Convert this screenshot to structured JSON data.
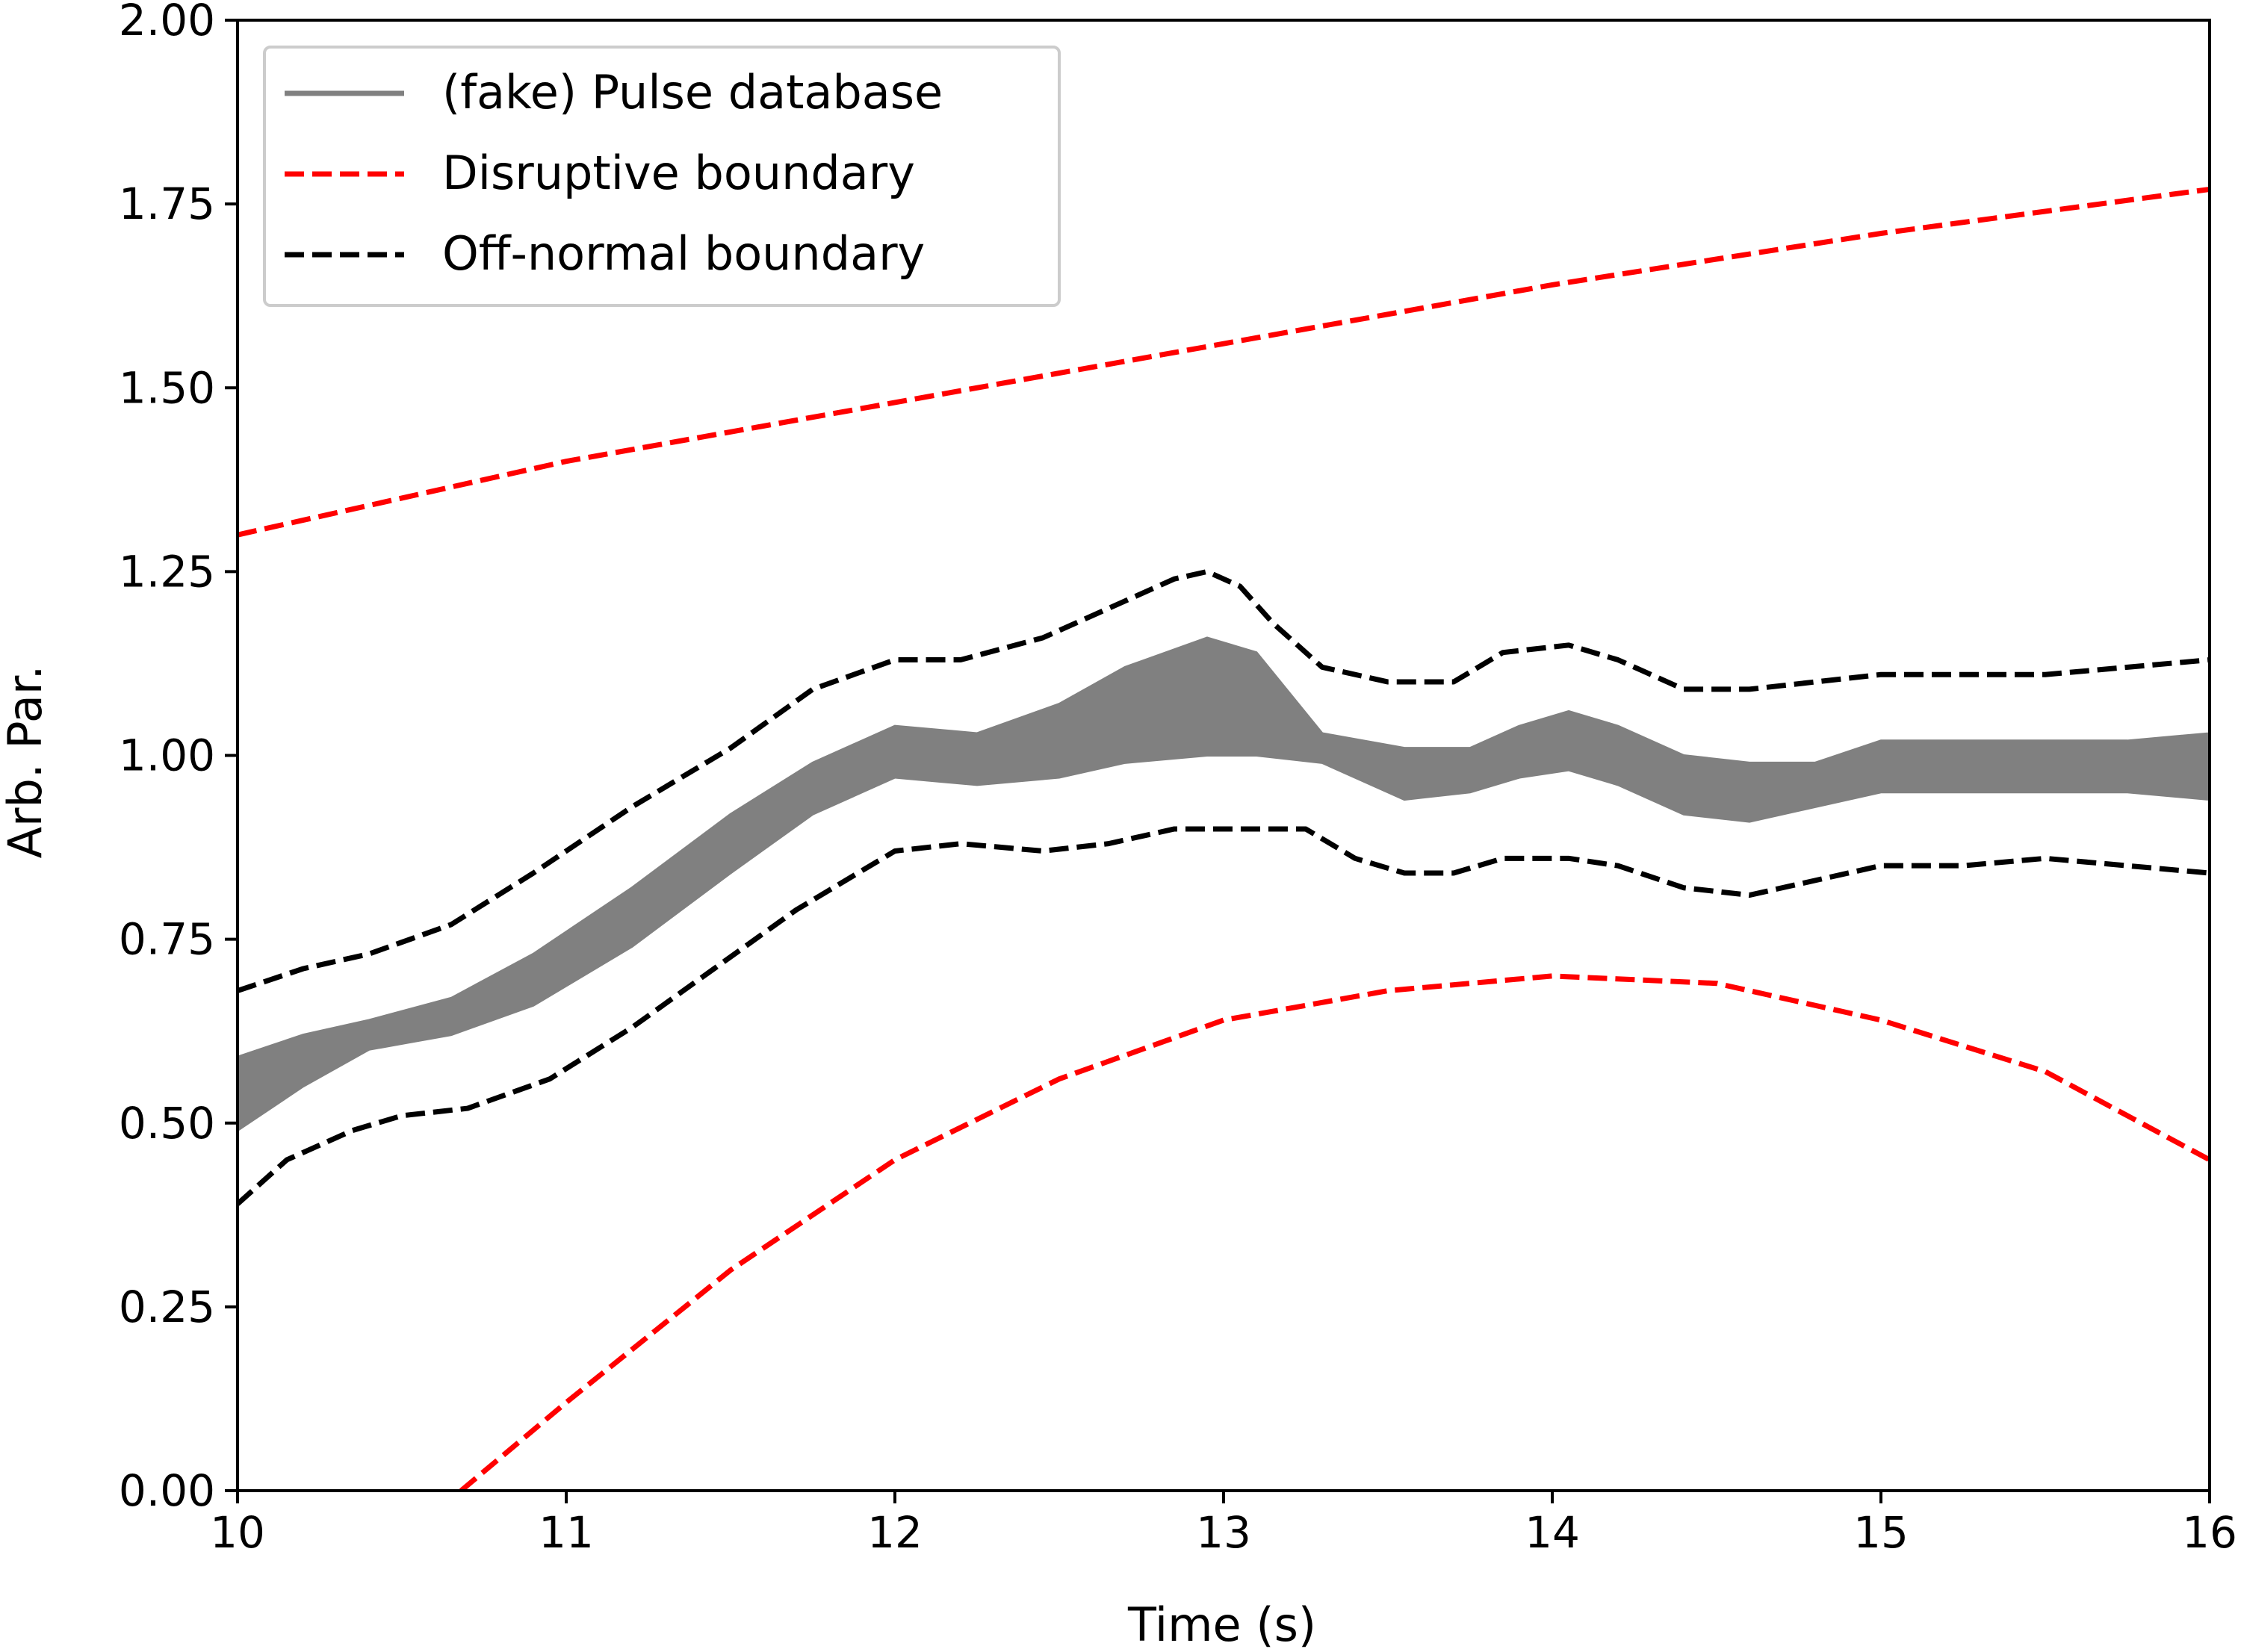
{
  "chart_data": {
    "type": "line",
    "title": "",
    "xlabel": "Time (s)",
    "ylabel": "Arb. Par.",
    "xlim": [
      10,
      16
    ],
    "ylim": [
      0,
      2
    ],
    "grid": false,
    "legend_position": "top-left",
    "x_ticks": [
      "10",
      "11",
      "12",
      "13",
      "14",
      "15",
      "16"
    ],
    "y_ticks": [
      "0.00",
      "0.25",
      "0.50",
      "0.75",
      "1.00",
      "1.25",
      "1.50",
      "1.75",
      "2.00"
    ],
    "legend": [
      {
        "label": "(fake) Pulse database",
        "color": "#808080",
        "style": "solid"
      },
      {
        "label": "Disruptive boundary",
        "color": "#ff0000",
        "style": "dashed"
      },
      {
        "label": "Off-normal boundary",
        "color": "#000000",
        "style": "dashed"
      }
    ],
    "series": [
      {
        "name": "(fake) Pulse database",
        "color": "#808080",
        "style": "band",
        "x": [
          10.0,
          10.2,
          10.4,
          10.65,
          10.9,
          11.2,
          11.5,
          11.75,
          12.0,
          12.25,
          12.5,
          12.7,
          12.95,
          13.1,
          13.3,
          13.55,
          13.75,
          13.9,
          14.05,
          14.2,
          14.4,
          14.6,
          14.8,
          15.0,
          15.2,
          15.5,
          15.75,
          16.0
        ],
        "upper": [
          0.59,
          0.62,
          0.64,
          0.67,
          0.73,
          0.82,
          0.92,
          0.99,
          1.04,
          1.03,
          1.07,
          1.12,
          1.16,
          1.14,
          1.03,
          1.01,
          1.01,
          1.04,
          1.06,
          1.04,
          1.0,
          0.99,
          0.99,
          1.02,
          1.02,
          1.02,
          1.02,
          1.03
        ],
        "lower": [
          0.49,
          0.55,
          0.6,
          0.62,
          0.66,
          0.74,
          0.84,
          0.92,
          0.97,
          0.96,
          0.97,
          0.99,
          1.0,
          1.0,
          0.99,
          0.94,
          0.95,
          0.97,
          0.98,
          0.96,
          0.92,
          0.91,
          0.93,
          0.95,
          0.95,
          0.95,
          0.95,
          0.94
        ]
      },
      {
        "name": "Disruptive boundary",
        "color": "#ff0000",
        "style": "dashed",
        "x": [
          10.0,
          11.0,
          12.0,
          13.0,
          14.0,
          15.0,
          16.0
        ],
        "y": [
          1.3,
          1.4,
          1.48,
          1.56,
          1.64,
          1.71,
          1.77
        ]
      },
      {
        "name": "Disruptive boundary (lower)",
        "color": "#ff0000",
        "style": "dashed",
        "x": [
          10.68,
          11.0,
          11.5,
          12.0,
          12.5,
          13.0,
          13.5,
          14.0,
          14.5,
          15.0,
          15.5,
          16.0
        ],
        "y": [
          0.0,
          0.12,
          0.3,
          0.45,
          0.56,
          0.64,
          0.68,
          0.7,
          0.69,
          0.64,
          0.57,
          0.45
        ]
      },
      {
        "name": "Off-normal boundary (upper)",
        "color": "#000000",
        "style": "dashed",
        "x": [
          10.0,
          10.2,
          10.4,
          10.65,
          10.9,
          11.2,
          11.5,
          11.75,
          12.0,
          12.2,
          12.45,
          12.65,
          12.85,
          12.95,
          13.05,
          13.15,
          13.3,
          13.5,
          13.7,
          13.85,
          14.05,
          14.2,
          14.4,
          14.6,
          14.8,
          15.0,
          15.25,
          15.5,
          15.75,
          16.0
        ],
        "y": [
          0.68,
          0.71,
          0.73,
          0.77,
          0.84,
          0.93,
          1.01,
          1.09,
          1.13,
          1.13,
          1.16,
          1.2,
          1.24,
          1.25,
          1.23,
          1.18,
          1.12,
          1.1,
          1.1,
          1.14,
          1.15,
          1.13,
          1.09,
          1.09,
          1.1,
          1.11,
          1.11,
          1.11,
          1.12,
          1.13
        ]
      },
      {
        "name": "Off-normal boundary (lower)",
        "color": "#000000",
        "style": "dashed",
        "x": [
          10.0,
          10.15,
          10.35,
          10.5,
          10.7,
          10.95,
          11.2,
          11.45,
          11.7,
          12.0,
          12.2,
          12.45,
          12.65,
          12.85,
          13.05,
          13.25,
          13.4,
          13.55,
          13.7,
          13.85,
          14.05,
          14.2,
          14.4,
          14.6,
          14.8,
          15.0,
          15.25,
          15.5,
          15.75,
          16.0
        ],
        "y": [
          0.39,
          0.45,
          0.49,
          0.51,
          0.52,
          0.56,
          0.63,
          0.71,
          0.79,
          0.87,
          0.88,
          0.87,
          0.88,
          0.9,
          0.9,
          0.9,
          0.86,
          0.84,
          0.84,
          0.86,
          0.86,
          0.85,
          0.82,
          0.81,
          0.83,
          0.85,
          0.85,
          0.86,
          0.85,
          0.84
        ]
      }
    ]
  }
}
